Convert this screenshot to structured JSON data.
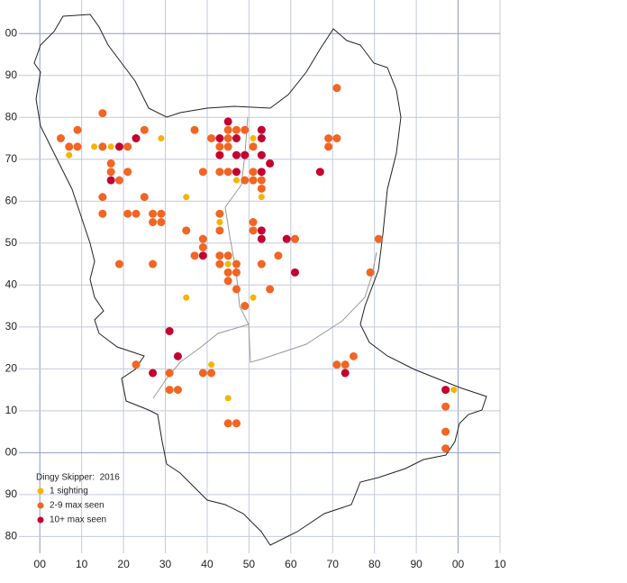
{
  "chart_data": {
    "type": "scatter",
    "title": "Dingy Skipper:  2016",
    "xlim": [
      -5,
      110
    ],
    "ylim": [
      -24,
      108
    ],
    "xticks": [
      {
        "value": 0,
        "label": "00"
      },
      10,
      20,
      30,
      40,
      50,
      60,
      70,
      80,
      90,
      {
        "value": 100,
        "label": "00"
      },
      {
        "value": 110,
        "label": "10"
      }
    ],
    "yticks": [
      {
        "value": -20,
        "label": "80"
      },
      {
        "value": -10,
        "label": "90"
      },
      {
        "value": 0,
        "label": "00"
      },
      10,
      20,
      30,
      40,
      50,
      60,
      70,
      80,
      90,
      {
        "value": 100,
        "label": "00"
      }
    ],
    "grid": true,
    "legend": "lower left",
    "series": [
      {
        "name": "1 sighting",
        "color": "#f5b400",
        "x": [
          7,
          13,
          17,
          29,
          35,
          43,
          45,
          35,
          51,
          41,
          45,
          47,
          53,
          99,
          51
        ],
        "y": [
          71,
          73,
          73,
          75,
          61,
          55,
          45,
          37,
          37,
          21,
          13,
          65,
          61,
          15,
          75
        ]
      },
      {
        "name": "2-9 max seen",
        "color": "#f26522",
        "x": [
          5,
          7,
          9,
          9,
          15,
          15,
          17,
          17,
          19,
          21,
          21,
          23,
          25,
          25,
          15,
          15,
          21,
          23,
          27,
          29,
          27,
          29,
          19,
          27,
          35,
          37,
          39,
          39,
          39,
          37,
          41,
          43,
          43,
          43,
          43,
          43,
          43,
          45,
          45,
          47,
          49,
          45,
          45,
          49,
          51,
          51,
          53,
          53,
          51,
          51,
          51,
          53,
          45,
          45,
          47,
          47,
          45,
          47,
          49,
          55,
          57,
          61,
          69,
          69,
          71,
          71,
          81,
          79,
          71,
          73,
          75,
          23,
          31,
          31,
          33,
          39,
          41,
          45,
          47,
          97,
          97,
          97
        ],
        "y": [
          75,
          73,
          73,
          77,
          81,
          73,
          69,
          67,
          65,
          67,
          73,
          75,
          77,
          61,
          61,
          57,
          57,
          57,
          57,
          57,
          55,
          55,
          45,
          45,
          53,
          47,
          51,
          49,
          67,
          77,
          75,
          73,
          67,
          57,
          53,
          47,
          45,
          77,
          75,
          77,
          77,
          73,
          67,
          65,
          67,
          65,
          65,
          63,
          73,
          55,
          53,
          45,
          47,
          43,
          43,
          45,
          41,
          39,
          35,
          39,
          47,
          51,
          75,
          73,
          75,
          87,
          51,
          43,
          21,
          21,
          23,
          21,
          19,
          15,
          15,
          19,
          19,
          7,
          7,
          11,
          5,
          1
        ]
      },
      {
        "name": "10+ max seen",
        "color": "#c4002f",
        "x": [
          19,
          23,
          17,
          43,
          43,
          45,
          47,
          47,
          49,
          53,
          53,
          53,
          55,
          53,
          47,
          67,
          53,
          53,
          59,
          61,
          39,
          31,
          33,
          27,
          73,
          97
        ],
        "y": [
          73,
          75,
          65,
          75,
          71,
          79,
          75,
          71,
          71,
          77,
          75,
          71,
          69,
          67,
          67,
          67,
          53,
          51,
          51,
          43,
          47,
          29,
          23,
          19,
          19,
          15
        ]
      }
    ]
  }
}
